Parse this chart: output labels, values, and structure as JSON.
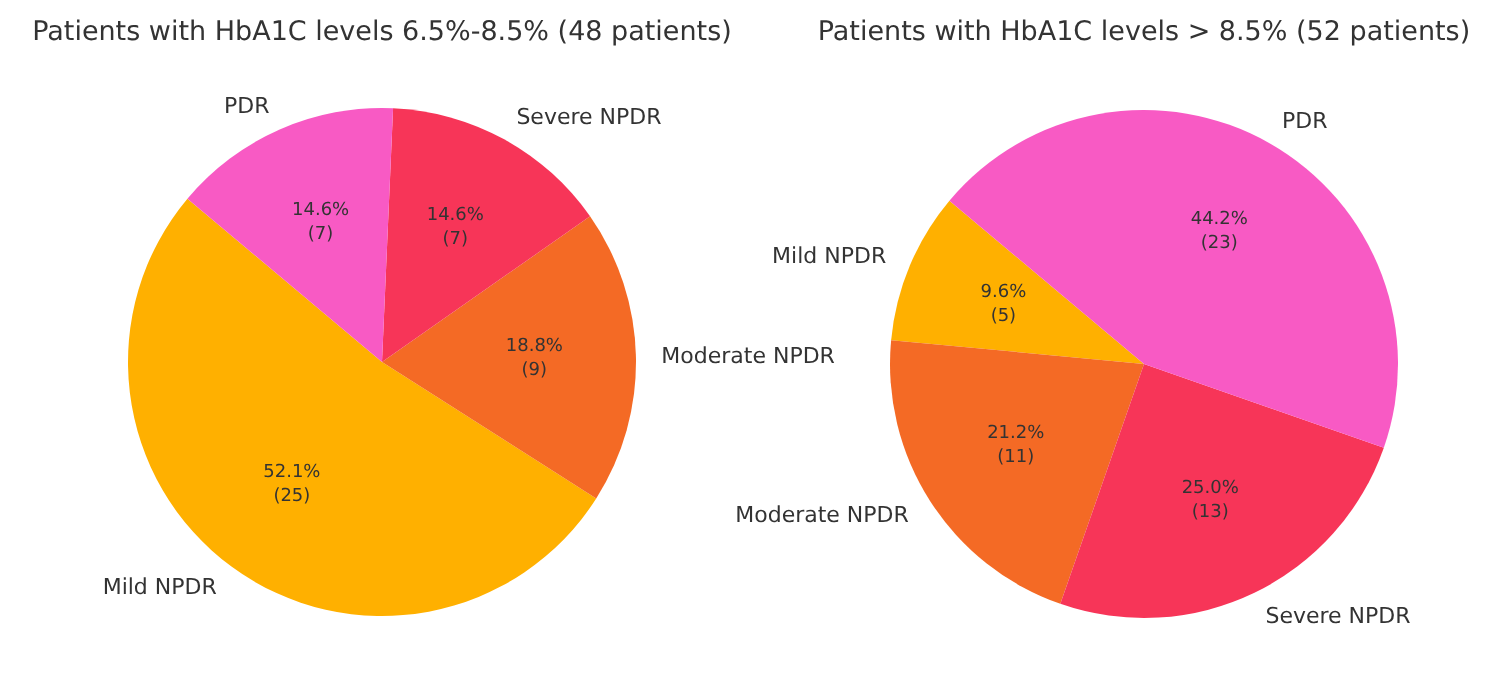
{
  "chart_data": [
    {
      "type": "pie",
      "title": "Patients with HbA1C levels 6.5%-8.5% (48 patients)",
      "categories": [
        "Mild NPDR",
        "Moderate NPDR",
        "Severe NPDR",
        "PDR"
      ],
      "values": [
        25,
        9,
        7,
        7
      ],
      "colors": [
        "#ffb000",
        "#f46a25",
        "#f73558",
        "#f85ac4"
      ],
      "value_labels": [
        "52.1%\n(25)",
        "18.8%\n(9)",
        "14.6%\n(7)",
        "14.6%\n(7)"
      ]
    },
    {
      "type": "pie",
      "title": "Patients with HbA1C levels > 8.5% (52 patients)",
      "categories": [
        "Mild NPDR",
        "Moderate NPDR",
        "Severe NPDR",
        "PDR"
      ],
      "values": [
        5,
        11,
        13,
        23
      ],
      "colors": [
        "#ffb000",
        "#f46a25",
        "#f73558",
        "#f85ac4"
      ],
      "value_labels": [
        "9.6%\n(5)",
        "21.2%\n(11)",
        "25.0%\n(13)",
        "44.2%\n(23)"
      ]
    }
  ]
}
